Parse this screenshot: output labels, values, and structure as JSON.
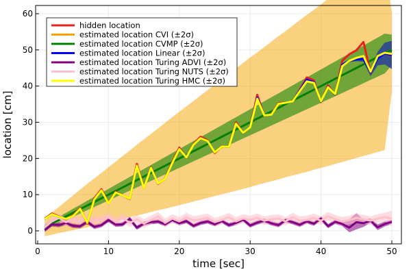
{
  "chart_data": {
    "type": "line",
    "xlabel": "time [sec]",
    "ylabel": "location [cm]",
    "xlim": [
      0,
      51.5
    ],
    "ylim": [
      -3.5,
      62
    ],
    "xticks": [
      "0",
      "10",
      "20",
      "30",
      "40",
      "50"
    ],
    "yticks": [
      "0",
      "10",
      "20",
      "30",
      "40",
      "50",
      "60"
    ],
    "grid": true,
    "legend_position": "top-left",
    "x": [
      1,
      2,
      3,
      4,
      5,
      6,
      7,
      8,
      9,
      10,
      11,
      12,
      13,
      14,
      15,
      16,
      17,
      18,
      19,
      20,
      21,
      22,
      23,
      24,
      25,
      26,
      27,
      28,
      29,
      30,
      31,
      32,
      33,
      34,
      35,
      36,
      37,
      38,
      39,
      40,
      41,
      42,
      43,
      44,
      45,
      46,
      47,
      48,
      49,
      50
    ],
    "series": [
      {
        "name": "hidden location",
        "color": "#e6201b",
        "style": "noisy-observation",
        "values": [
          3.4,
          4.8,
          4.0,
          3.2,
          4.3,
          6.3,
          2.0,
          9.0,
          11.5,
          7.7,
          10.8,
          9.8,
          8.8,
          18.5,
          11.8,
          17.6,
          13.0,
          14.5,
          19.0,
          23.0,
          20.2,
          24.0,
          26.0,
          25.0,
          21.5,
          23.4,
          23.2,
          30.0,
          27.0,
          28.6,
          37.6,
          31.8,
          32.2,
          35.3,
          35.4,
          35.8,
          39.0,
          42.4,
          41.6,
          35.6,
          40.2,
          37.6,
          47.0,
          48.8,
          49.9,
          52.2,
          43.6,
          48.0,
          49.0,
          48.5
        ]
      },
      {
        "name": "estimated location CVI (±2σ)",
        "color": "#f5a300",
        "style": "band",
        "line_values": [
          1.0,
          2.0,
          3.0,
          4.0,
          5.0,
          6.0,
          7.0,
          8.0,
          9.0,
          10.0,
          11.0,
          12.0,
          13.0,
          14.0,
          15.0,
          16.0,
          17.0,
          18.0,
          19.0,
          20.0,
          21.0,
          22.0,
          23.0,
          24.0,
          25.0,
          26.0,
          27.0,
          28.0,
          29.0,
          30.0,
          31.0,
          32.0,
          33.0,
          34.0,
          35.0,
          36.0,
          37.0,
          38.0,
          39.0,
          40.0,
          41.0,
          42.0,
          43.0,
          44.0,
          45.0,
          46.0,
          47.0,
          48.0,
          49.0,
          50.0
        ],
        "upper": [
          3.5,
          5.1,
          6.6,
          8.2,
          9.8,
          11.4,
          13.0,
          14.5,
          16.0,
          17.6,
          19.1,
          20.7,
          22.2,
          23.8,
          25.3,
          26.8,
          28.3,
          29.9,
          31.4,
          32.9,
          34.4,
          35.9,
          37.4,
          38.9,
          40.4,
          41.9,
          43.4,
          44.9,
          46.4,
          47.9,
          49.3,
          50.8,
          52.3,
          53.8,
          55.2,
          56.7,
          58.2,
          59.7,
          61.1,
          62.6,
          64.1,
          65.5,
          67.0,
          68.4,
          69.9,
          71.3,
          72.8,
          74.2,
          75.7,
          60.0
        ],
        "lower": [
          -1.5,
          -1.1,
          -0.6,
          -0.2,
          0.2,
          0.6,
          1.0,
          1.5,
          2.0,
          2.4,
          2.9,
          3.3,
          3.8,
          4.2,
          4.7,
          5.2,
          5.7,
          6.1,
          6.6,
          7.1,
          7.6,
          8.1,
          8.6,
          9.1,
          9.6,
          10.1,
          10.6,
          11.1,
          11.6,
          12.1,
          12.7,
          13.2,
          13.7,
          14.2,
          14.8,
          15.3,
          15.8,
          16.3,
          16.9,
          17.4,
          17.9,
          18.5,
          19.0,
          19.6,
          20.1,
          20.7,
          21.2,
          21.8,
          22.3,
          38.5
        ]
      },
      {
        "name": "estimated location CVMP (±2σ)",
        "color": "#008000",
        "style": "band",
        "line_values": [
          1.0,
          2.0,
          3.0,
          4.0,
          5.0,
          6.0,
          7.0,
          8.0,
          9.0,
          10.0,
          11.0,
          12.0,
          13.0,
          14.0,
          15.0,
          16.0,
          17.0,
          18.0,
          19.0,
          20.0,
          21.0,
          22.0,
          23.0,
          24.0,
          25.0,
          26.0,
          27.0,
          28.0,
          29.0,
          30.0,
          31.0,
          32.0,
          33.0,
          34.0,
          35.0,
          36.0,
          37.0,
          38.0,
          39.0,
          40.0,
          41.0,
          42.0,
          43.0,
          44.0,
          45.0,
          46.0,
          47.0,
          48.0,
          49.0,
          50.0
        ],
        "upper": [
          1.7,
          2.8,
          3.9,
          5.0,
          6.1,
          7.2,
          8.3,
          9.4,
          10.5,
          11.6,
          12.7,
          13.8,
          14.9,
          16.0,
          17.1,
          18.2,
          19.3,
          20.4,
          21.5,
          22.6,
          23.7,
          24.8,
          25.9,
          27.0,
          28.1,
          29.2,
          30.3,
          31.4,
          32.5,
          33.6,
          34.7,
          35.8,
          36.9,
          38.0,
          39.1,
          40.2,
          41.3,
          42.4,
          43.5,
          44.6,
          45.7,
          46.8,
          47.9,
          49.0,
          50.1,
          51.2,
          52.3,
          53.4,
          54.5,
          54.2
        ],
        "lower": [
          0.3,
          1.2,
          2.1,
          3.0,
          3.9,
          4.8,
          5.7,
          6.6,
          7.5,
          8.4,
          9.3,
          10.2,
          11.1,
          12.0,
          12.9,
          13.8,
          14.7,
          15.6,
          16.5,
          17.4,
          18.3,
          19.2,
          20.1,
          21.0,
          21.9,
          22.8,
          23.7,
          24.6,
          25.5,
          26.4,
          27.3,
          28.2,
          29.1,
          30.0,
          30.9,
          31.8,
          32.7,
          33.6,
          34.5,
          35.4,
          36.3,
          37.2,
          38.1,
          39.0,
          39.9,
          40.8,
          41.7,
          42.6,
          43.5,
          45.8
        ]
      },
      {
        "name": "estimated location Linear (±2σ)",
        "color": "#0000ff",
        "band_color": "#2b3f99",
        "style": "band",
        "line_values": [
          3.3,
          4.6,
          3.9,
          3.3,
          4.1,
          6.1,
          2.2,
          8.7,
          11.2,
          7.6,
          10.6,
          9.8,
          8.9,
          18.0,
          11.8,
          17.4,
          13.1,
          14.4,
          18.7,
          22.6,
          20.3,
          23.8,
          25.6,
          24.8,
          21.7,
          23.3,
          23.2,
          29.6,
          27.1,
          28.6,
          36.8,
          31.9,
          32.1,
          35.1,
          35.4,
          35.8,
          38.8,
          41.8,
          41.1,
          35.7,
          39.8,
          37.7,
          45.9,
          47.0,
          47.4,
          47.5,
          43.8,
          47.6,
          49.0,
          48.6
        ],
        "upper": [
          3.6,
          4.9,
          4.2,
          3.6,
          4.4,
          6.4,
          2.5,
          9.0,
          11.5,
          7.9,
          10.9,
          10.1,
          9.2,
          18.3,
          12.1,
          17.7,
          13.4,
          14.7,
          19.0,
          22.9,
          20.6,
          24.1,
          25.9,
          25.1,
          22.0,
          23.6,
          23.5,
          29.9,
          27.4,
          28.9,
          37.1,
          32.2,
          32.4,
          35.4,
          35.7,
          36.1,
          39.1,
          42.1,
          41.4,
          36.0,
          40.1,
          38.0,
          46.3,
          47.4,
          47.9,
          48.3,
          44.9,
          49.5,
          52.0,
          52.5
        ],
        "lower": [
          3.0,
          4.3,
          3.6,
          3.0,
          3.8,
          5.8,
          1.9,
          8.4,
          10.9,
          7.3,
          10.3,
          9.5,
          8.6,
          17.7,
          11.5,
          17.1,
          12.8,
          14.1,
          18.4,
          22.3,
          20.0,
          23.5,
          25.3,
          24.5,
          21.4,
          23.0,
          22.9,
          29.3,
          26.8,
          28.3,
          36.5,
          31.6,
          31.8,
          34.8,
          35.1,
          35.5,
          38.5,
          41.5,
          40.8,
          35.4,
          39.5,
          37.4,
          45.5,
          46.6,
          46.9,
          46.7,
          42.7,
          45.7,
          46.0,
          44.7
        ]
      },
      {
        "name": "estimated location Turing ADVI (±2σ)",
        "color": "#800080",
        "style": "band",
        "line_values": [
          0.2,
          1.8,
          1.6,
          2.2,
          1.4,
          1.3,
          2.5,
          1.1,
          1.6,
          3.0,
          1.7,
          1.8,
          3.3,
          0.9,
          2.0,
          2.4,
          2.6,
          1.8,
          3.0,
          2.1,
          2.7,
          1.4,
          2.2,
          2.6,
          1.8,
          2.7,
          1.6,
          2.2,
          3.1,
          1.5,
          2.3,
          2.8,
          2.1,
          1.6,
          2.9,
          2.4,
          1.7,
          2.6,
          2.0,
          3.4,
          1.3,
          2.5,
          1.9,
          0.9,
          2.4,
          2.1,
          2.8,
          1.0,
          1.9,
          2.5
        ],
        "upper": [
          0.7,
          2.4,
          2.2,
          2.8,
          2.0,
          1.9,
          3.1,
          1.7,
          2.2,
          3.6,
          2.3,
          2.4,
          3.9,
          1.5,
          2.6,
          3.0,
          3.2,
          2.4,
          3.6,
          2.7,
          3.3,
          2.0,
          2.8,
          3.2,
          2.4,
          3.3,
          2.2,
          2.8,
          3.7,
          2.1,
          2.9,
          3.4,
          2.7,
          2.2,
          3.5,
          3.0,
          2.3,
          3.2,
          2.6,
          4.0,
          1.9,
          3.1,
          2.5,
          3.2,
          4.9,
          3.1,
          3.4,
          1.8,
          2.6,
          3.1
        ],
        "lower": [
          -0.3,
          1.2,
          1.0,
          1.6,
          0.8,
          0.7,
          1.9,
          0.5,
          1.0,
          2.4,
          1.1,
          1.2,
          2.7,
          0.3,
          1.4,
          1.8,
          2.0,
          1.2,
          2.4,
          1.5,
          2.1,
          0.8,
          1.6,
          2.0,
          1.2,
          2.1,
          1.0,
          1.6,
          2.5,
          0.9,
          1.7,
          2.2,
          1.5,
          1.0,
          2.3,
          1.8,
          1.1,
          2.0,
          1.4,
          2.8,
          0.7,
          1.9,
          1.3,
          -0.4,
          0.4,
          1.1,
          2.2,
          0.2,
          1.2,
          1.9
        ]
      },
      {
        "name": "estimated location Turing NUTS (±2σ)",
        "color": "#ffc0cb",
        "style": "band",
        "line_values": [
          1.0,
          2.6,
          3.6,
          2.4,
          3.2,
          2.6,
          3.4,
          2.8,
          3.0,
          3.8,
          2.4,
          3.6,
          2.2,
          3.2,
          2.0,
          3.0,
          4.0,
          2.2,
          3.4,
          2.6,
          3.8,
          2.8,
          3.2,
          3.6,
          2.4,
          3.0,
          3.8,
          2.6,
          3.4,
          3.0,
          3.6,
          2.8,
          3.2,
          3.4,
          2.6,
          3.8,
          2.8,
          3.0,
          3.6,
          2.8,
          4.0,
          3.2,
          2.6,
          3.0,
          3.6,
          3.2,
          2.8,
          3.4,
          3.8,
          3.4
        ],
        "upper": [
          1.8,
          3.8,
          4.8,
          3.6,
          4.4,
          3.8,
          4.6,
          4.0,
          4.2,
          5.0,
          3.6,
          4.8,
          3.4,
          4.4,
          3.2,
          4.2,
          5.2,
          3.4,
          4.6,
          3.8,
          5.0,
          4.0,
          4.4,
          4.8,
          3.6,
          4.2,
          5.0,
          3.8,
          4.6,
          4.2,
          4.8,
          4.0,
          4.4,
          4.6,
          3.8,
          5.0,
          4.0,
          4.2,
          4.8,
          4.0,
          5.2,
          4.4,
          3.8,
          4.2,
          4.8,
          4.4,
          4.0,
          4.6,
          5.0,
          5.6
        ],
        "lower": [
          0.2,
          1.4,
          2.4,
          1.2,
          2.0,
          1.4,
          2.2,
          1.6,
          1.8,
          2.6,
          1.2,
          2.4,
          1.0,
          2.0,
          0.8,
          1.8,
          2.8,
          1.0,
          2.2,
          1.4,
          2.6,
          1.6,
          2.0,
          2.4,
          1.2,
          1.8,
          2.6,
          1.4,
          2.2,
          1.8,
          2.4,
          1.6,
          2.0,
          2.2,
          1.4,
          2.6,
          1.6,
          1.8,
          2.4,
          1.6,
          2.8,
          2.0,
          1.4,
          1.8,
          2.4,
          2.0,
          1.6,
          2.2,
          2.6,
          1.2
        ]
      },
      {
        "name": "estimated location Turing HMC (±2σ)",
        "color": "#ffff00",
        "style": "line",
        "line_values": [
          3.3,
          4.6,
          3.9,
          3.3,
          4.1,
          6.1,
          2.2,
          8.7,
          11.2,
          7.6,
          10.6,
          9.8,
          8.9,
          18.0,
          11.8,
          17.4,
          13.1,
          14.4,
          18.7,
          22.6,
          20.3,
          23.8,
          25.6,
          24.8,
          21.7,
          23.3,
          23.2,
          29.6,
          27.1,
          28.6,
          36.5,
          31.9,
          32.1,
          35.1,
          35.4,
          35.8,
          38.6,
          41.3,
          40.9,
          35.8,
          39.7,
          37.8,
          45.5,
          47.0,
          47.8,
          48.3,
          44.0,
          48.3,
          49.2,
          48.9
        ]
      }
    ]
  }
}
